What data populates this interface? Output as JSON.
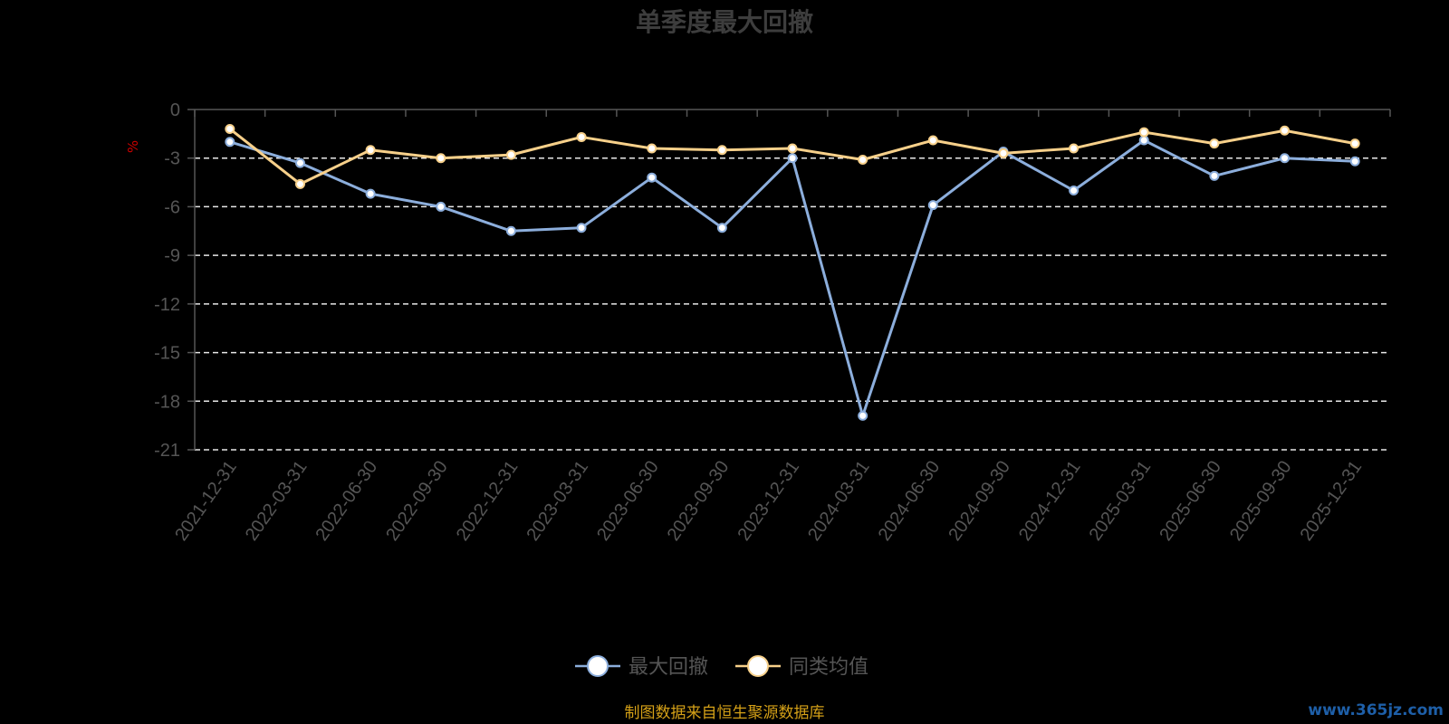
{
  "chart_data": {
    "type": "line",
    "title": "单季度最大回撤",
    "ylabel": "%",
    "ylim": [
      -21,
      0
    ],
    "yticks": [
      0,
      -3,
      -6,
      -9,
      -12,
      -15,
      -18,
      -21
    ],
    "grid": true,
    "legend_position": "bottom-center",
    "categories": [
      "2021-12-31",
      "2022-03-31",
      "2022-06-30",
      "2022-09-30",
      "2022-12-31",
      "2023-03-31",
      "2023-06-30",
      "2023-09-30",
      "2023-12-31",
      "2024-03-31",
      "2024-06-30",
      "2024-09-30",
      "2024-12-31",
      "2025-03-31",
      "2025-06-30",
      "2025-09-30",
      "2025-12-31"
    ],
    "series": [
      {
        "name": "最大回撤",
        "color": "#8caedc",
        "values": [
          -2.0,
          -3.3,
          -5.2,
          -6.0,
          -7.5,
          -7.3,
          -4.2,
          -7.3,
          -3.0,
          -18.9,
          -5.9,
          -2.6,
          -5.0,
          -1.9,
          -4.1,
          -3.0,
          -3.2
        ]
      },
      {
        "name": "同类均值",
        "color": "#f7d08a",
        "values": [
          -1.2,
          -4.6,
          -2.5,
          -3.0,
          -2.8,
          -1.7,
          -2.4,
          -2.5,
          -2.4,
          -3.1,
          -1.9,
          -2.7,
          -2.4,
          -1.4,
          -2.1,
          -1.3,
          -2.1
        ]
      }
    ]
  },
  "footer": {
    "source": "制图数据来自恒生聚源数据库",
    "watermark": "www.365jz.com"
  }
}
